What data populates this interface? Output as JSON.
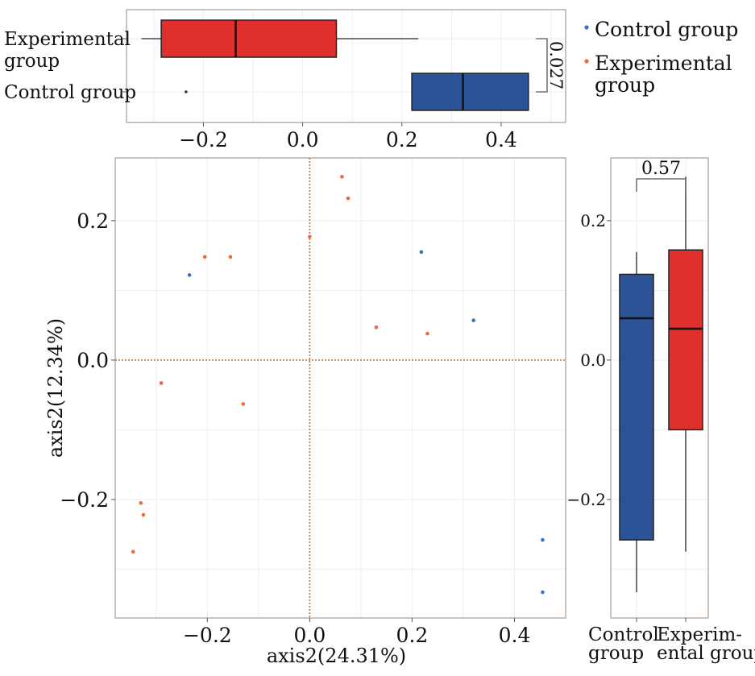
{
  "colors": {
    "control": "#2c5396",
    "experimental": "#e0302e",
    "control_point": "#3f6fbf",
    "experimental_point": "#ee6a3c",
    "frame": "#9a8a7a",
    "grid": "#eeeeee",
    "zero_line": "#a07050"
  },
  "legend": {
    "placement": "top-right",
    "items": [
      {
        "key": "control",
        "label": "Control group"
      },
      {
        "key": "experimental",
        "label": "Experimental group",
        "lines": [
          "Experimental",
          "group"
        ]
      }
    ]
  },
  "chart_data": [
    {
      "id": "scatter",
      "type": "scatter",
      "xlabel": "axis2(24.31%)",
      "ylabel": "axis2(12.34%)",
      "xlim": [
        -0.38,
        0.5
      ],
      "ylim": [
        -0.37,
        0.29
      ],
      "x_ticks": [
        -0.2,
        0.0,
        0.2,
        0.4
      ],
      "x_tick_labels": [
        "−0.2",
        "0.0",
        "0.2",
        "0.4"
      ],
      "y_ticks": [
        -0.2,
        0.0,
        0.2
      ],
      "y_tick_labels": [
        "−0.2",
        "0.0",
        "0.2"
      ],
      "grid": true,
      "series": [
        {
          "name": "Control group",
          "key": "control",
          "points": [
            [
              -0.235,
              0.122
            ],
            [
              0.218,
              0.155
            ],
            [
              0.32,
              0.057
            ],
            [
              0.455,
              -0.258
            ],
            [
              0.455,
              -0.333
            ]
          ]
        },
        {
          "name": "Experimental group",
          "key": "experimental",
          "points": [
            [
              0.063,
              0.263
            ],
            [
              0.075,
              0.232
            ],
            [
              0.0,
              0.177
            ],
            [
              -0.205,
              0.148
            ],
            [
              -0.155,
              0.148
            ],
            [
              0.13,
              0.047
            ],
            [
              0.23,
              0.038
            ],
            [
              -0.29,
              -0.033
            ],
            [
              -0.13,
              -0.063
            ],
            [
              -0.33,
              -0.205
            ],
            [
              -0.325,
              -0.222
            ],
            [
              -0.345,
              -0.275
            ]
          ]
        }
      ]
    },
    {
      "id": "top-box",
      "type": "box",
      "orientation": "horizontal",
      "xlim": [
        -0.355,
        0.53
      ],
      "x_ticks": [
        -0.2,
        0.0,
        0.2,
        0.4
      ],
      "x_tick_labels": [
        "−0.2",
        "0.0",
        "0.2",
        "0.4"
      ],
      "grid": true,
      "categories": [
        {
          "label": "Experimental group",
          "lines": [
            "Experimental",
            "group"
          ],
          "key": "experimental",
          "min": -0.325,
          "q1": -0.285,
          "median": -0.135,
          "q3": 0.068,
          "max": 0.233,
          "outliers": []
        },
        {
          "label": "Control group",
          "lines": [
            "Control group"
          ],
          "key": "control",
          "min": 0.22,
          "q1": 0.22,
          "median": 0.323,
          "q3": 0.455,
          "max": 0.455,
          "outliers": [
            -0.235
          ]
        }
      ],
      "annotation": {
        "text": "0.027",
        "between": [
          "Experimental group",
          "Control group"
        ]
      }
    },
    {
      "id": "right-box",
      "type": "box",
      "orientation": "vertical",
      "ylim": [
        -0.37,
        0.29
      ],
      "y_ticks": [
        -0.2,
        0.0,
        0.2
      ],
      "y_tick_labels": [
        "−0.2",
        "0.0",
        "0.2"
      ],
      "grid": true,
      "categories": [
        {
          "label": "Control group",
          "lines": [
            "Control",
            "group"
          ],
          "key": "control",
          "min": -0.333,
          "q1": -0.258,
          "median": 0.06,
          "q3": 0.123,
          "max": 0.155,
          "outliers": []
        },
        {
          "label": "Experimental group",
          "lines": [
            "Experim-",
            "ental group"
          ],
          "key": "experimental",
          "min": -0.275,
          "q1": -0.1,
          "median": 0.045,
          "q3": 0.158,
          "max": 0.263,
          "outliers": []
        }
      ],
      "annotation": {
        "text": "0.57",
        "between": [
          "Control group",
          "Experimental group"
        ]
      }
    }
  ]
}
